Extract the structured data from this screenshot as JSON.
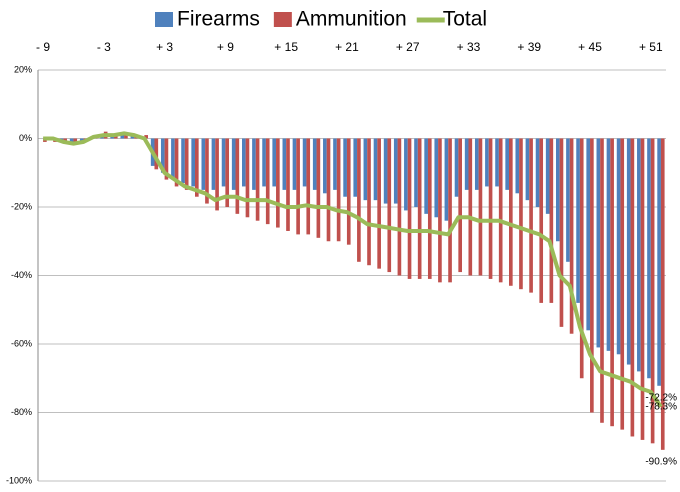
{
  "chart_data": {
    "type": "bar_line",
    "categories": [
      "- 9",
      null,
      null,
      null,
      null,
      null,
      "- 3",
      null,
      null,
      null,
      null,
      null,
      "+ 3",
      null,
      null,
      null,
      null,
      null,
      "+ 9",
      null,
      null,
      null,
      null,
      null,
      "+ 15",
      null,
      null,
      null,
      null,
      null,
      "+ 21",
      null,
      null,
      null,
      null,
      null,
      "+ 27",
      null,
      null,
      null,
      null,
      null,
      "+ 33",
      null,
      null,
      null,
      null,
      null,
      "+ 39",
      null,
      null,
      null,
      null,
      null,
      "+ 45",
      null,
      null,
      null,
      null,
      null,
      "+ 51",
      null
    ],
    "series": [
      {
        "name": "Firearms",
        "color": "#4f81bd",
        "kind": "bar",
        "values": [
          0,
          -0.5,
          -1,
          -1.5,
          -1,
          0,
          0.5,
          1,
          1.5,
          1,
          0.5,
          -8,
          -10,
          -12,
          -13,
          -14,
          -15,
          -15,
          -14,
          -15,
          -14,
          -15,
          -14,
          -14,
          -15,
          -15,
          -14,
          -15,
          -16,
          -15,
          -17,
          -17,
          -18,
          -18,
          -19,
          -19,
          -21,
          -20,
          -22,
          -23,
          -24,
          -17,
          -15,
          -15,
          -14,
          -14,
          -15,
          -16,
          -18,
          -20,
          -22,
          -30,
          -36,
          -48,
          -56,
          -61,
          -62,
          -63,
          -66,
          -68,
          -70,
          -72.2
        ],
        "value_labels": [
          null,
          null,
          null,
          null,
          null,
          null,
          null,
          null,
          null,
          null,
          null,
          null,
          null,
          null,
          null,
          null,
          null,
          null,
          null,
          null,
          null,
          null,
          null,
          null,
          null,
          null,
          null,
          null,
          null,
          null,
          null,
          null,
          null,
          null,
          null,
          null,
          null,
          null,
          null,
          null,
          null,
          null,
          null,
          null,
          null,
          null,
          null,
          null,
          null,
          null,
          null,
          null,
          null,
          null,
          null,
          null,
          null,
          null,
          null,
          null,
          null,
          "-72.2%"
        ]
      },
      {
        "name": "Ammunition",
        "color": "#c0504d",
        "kind": "bar",
        "values": [
          -1,
          -1,
          -1,
          -1,
          -0.5,
          1,
          2,
          1.5,
          1,
          1,
          1,
          -9,
          -12,
          -14,
          -15,
          -17,
          -19,
          -21,
          -20,
          -22,
          -23,
          -24,
          -25,
          -26,
          -27,
          -28,
          -28,
          -29,
          -30,
          -30,
          -31,
          -36,
          -37,
          -38,
          -39,
          -40,
          -41,
          -41,
          -41,
          -42,
          -42,
          -39,
          -40,
          -40,
          -41,
          -42,
          -43,
          -44,
          -45,
          -48,
          -48,
          -55,
          -57,
          -70,
          -80,
          -83,
          -84,
          -85,
          -87,
          -88,
          -89,
          -90.9
        ],
        "value_labels": [
          null,
          null,
          null,
          null,
          null,
          null,
          null,
          null,
          null,
          null,
          null,
          null,
          null,
          null,
          null,
          null,
          null,
          null,
          null,
          null,
          null,
          null,
          null,
          null,
          null,
          null,
          null,
          null,
          null,
          null,
          null,
          null,
          null,
          null,
          null,
          null,
          null,
          null,
          null,
          null,
          null,
          null,
          null,
          null,
          null,
          null,
          null,
          null,
          null,
          null,
          null,
          null,
          null,
          null,
          null,
          null,
          null,
          null,
          null,
          null,
          null,
          "-90.9%"
        ]
      },
      {
        "name": "Total",
        "color": "#9bbb59",
        "kind": "line",
        "values": [
          0,
          0,
          -1,
          -1.5,
          -1,
          0.5,
          1,
          1,
          1.5,
          1,
          0,
          -5,
          -10,
          -12,
          -14,
          -15,
          -16,
          -18,
          -17,
          -17,
          -18,
          -18,
          -18,
          -19,
          -20,
          -20,
          -19.5,
          -20,
          -20,
          -21,
          -21.5,
          -23,
          -25,
          -25.5,
          -26,
          -26.5,
          -27,
          -27,
          -27,
          -27.5,
          -28,
          -23,
          -23,
          -24,
          -24,
          -24,
          -25,
          -26,
          -27,
          -28,
          -30,
          -40,
          -43,
          -55,
          -63,
          -68,
          -69,
          -70,
          -71,
          -73,
          -74,
          -78.3
        ],
        "value_labels": [
          null,
          null,
          null,
          null,
          null,
          null,
          null,
          null,
          null,
          null,
          null,
          null,
          null,
          null,
          null,
          null,
          null,
          null,
          null,
          null,
          null,
          null,
          null,
          null,
          null,
          null,
          null,
          null,
          null,
          null,
          null,
          null,
          null,
          null,
          null,
          null,
          null,
          null,
          null,
          null,
          null,
          null,
          null,
          null,
          null,
          null,
          null,
          null,
          null,
          null,
          null,
          null,
          null,
          null,
          null,
          null,
          null,
          null,
          null,
          null,
          null,
          "-78.3%"
        ]
      }
    ],
    "ylim": [
      -100,
      20
    ],
    "yticks": [
      {
        "value": -100,
        "label": "-100%"
      },
      {
        "value": -80,
        "label": "-80%"
      },
      {
        "value": -60,
        "label": "-60%"
      },
      {
        "value": -40,
        "label": "-40%"
      },
      {
        "value": -20,
        "label": "-20%"
      },
      {
        "value": 0,
        "label": "0%"
      },
      {
        "value": 20,
        "label": "20%"
      }
    ],
    "grid": true,
    "legend": "top",
    "x_axis_position": "top"
  }
}
